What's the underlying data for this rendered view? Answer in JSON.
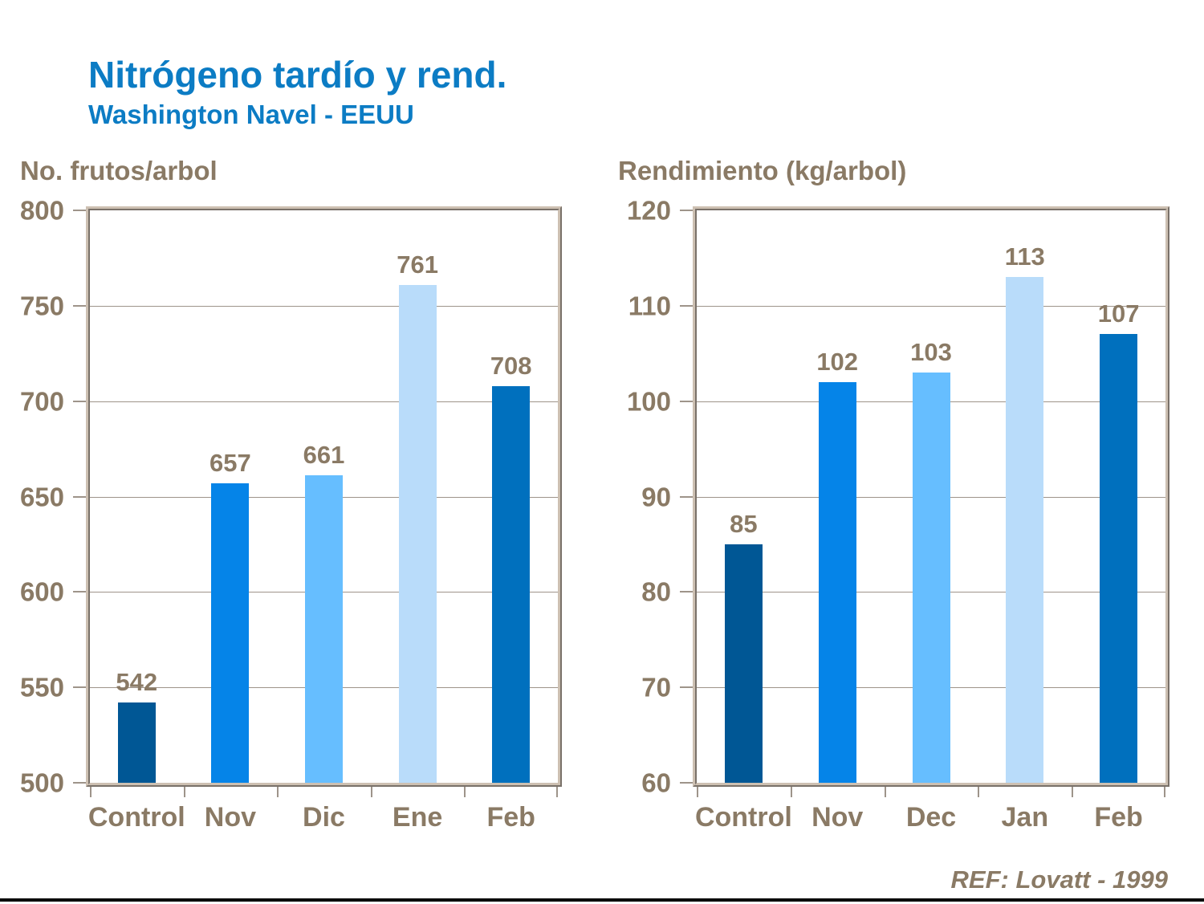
{
  "header": {
    "title": "Nitrógeno tardío y rend.",
    "subtitle": "Washington Navel - EEUU"
  },
  "footer": {
    "ref": "REF: Lovatt - 1999"
  },
  "colors": {
    "title_blue": "#0c7cc4",
    "label_brown": "#8a7a65",
    "plot_border_beige": "#b0a496",
    "gridline": "#9e948a",
    "bottom_rule": "#000000"
  },
  "chart_data": [
    {
      "type": "bar",
      "title": "No. frutos/arbol",
      "categories": [
        "Control",
        "Nov",
        "Dic",
        "Ene",
        "Feb"
      ],
      "values": [
        542,
        657,
        661,
        761,
        708
      ],
      "bar_colors": [
        "#005795",
        "#0584e8",
        "#66beff",
        "#b9dcfa",
        "#0070be"
      ],
      "ylim": [
        500,
        800
      ],
      "yticks": [
        500,
        550,
        600,
        650,
        700,
        750,
        800
      ],
      "grid": true,
      "legend": "none",
      "data_labels": true
    },
    {
      "type": "bar",
      "title": "Rendimiento (kg/arbol)",
      "categories": [
        "Control",
        "Nov",
        "Dec",
        "Jan",
        "Feb"
      ],
      "values": [
        85,
        102,
        103,
        113,
        107
      ],
      "bar_colors": [
        "#005795",
        "#0584e8",
        "#66beff",
        "#b9dcfa",
        "#0070be"
      ],
      "ylim": [
        60,
        120
      ],
      "yticks": [
        60,
        70,
        80,
        90,
        100,
        110,
        120
      ],
      "grid": true,
      "legend": "none",
      "data_labels": true
    }
  ]
}
